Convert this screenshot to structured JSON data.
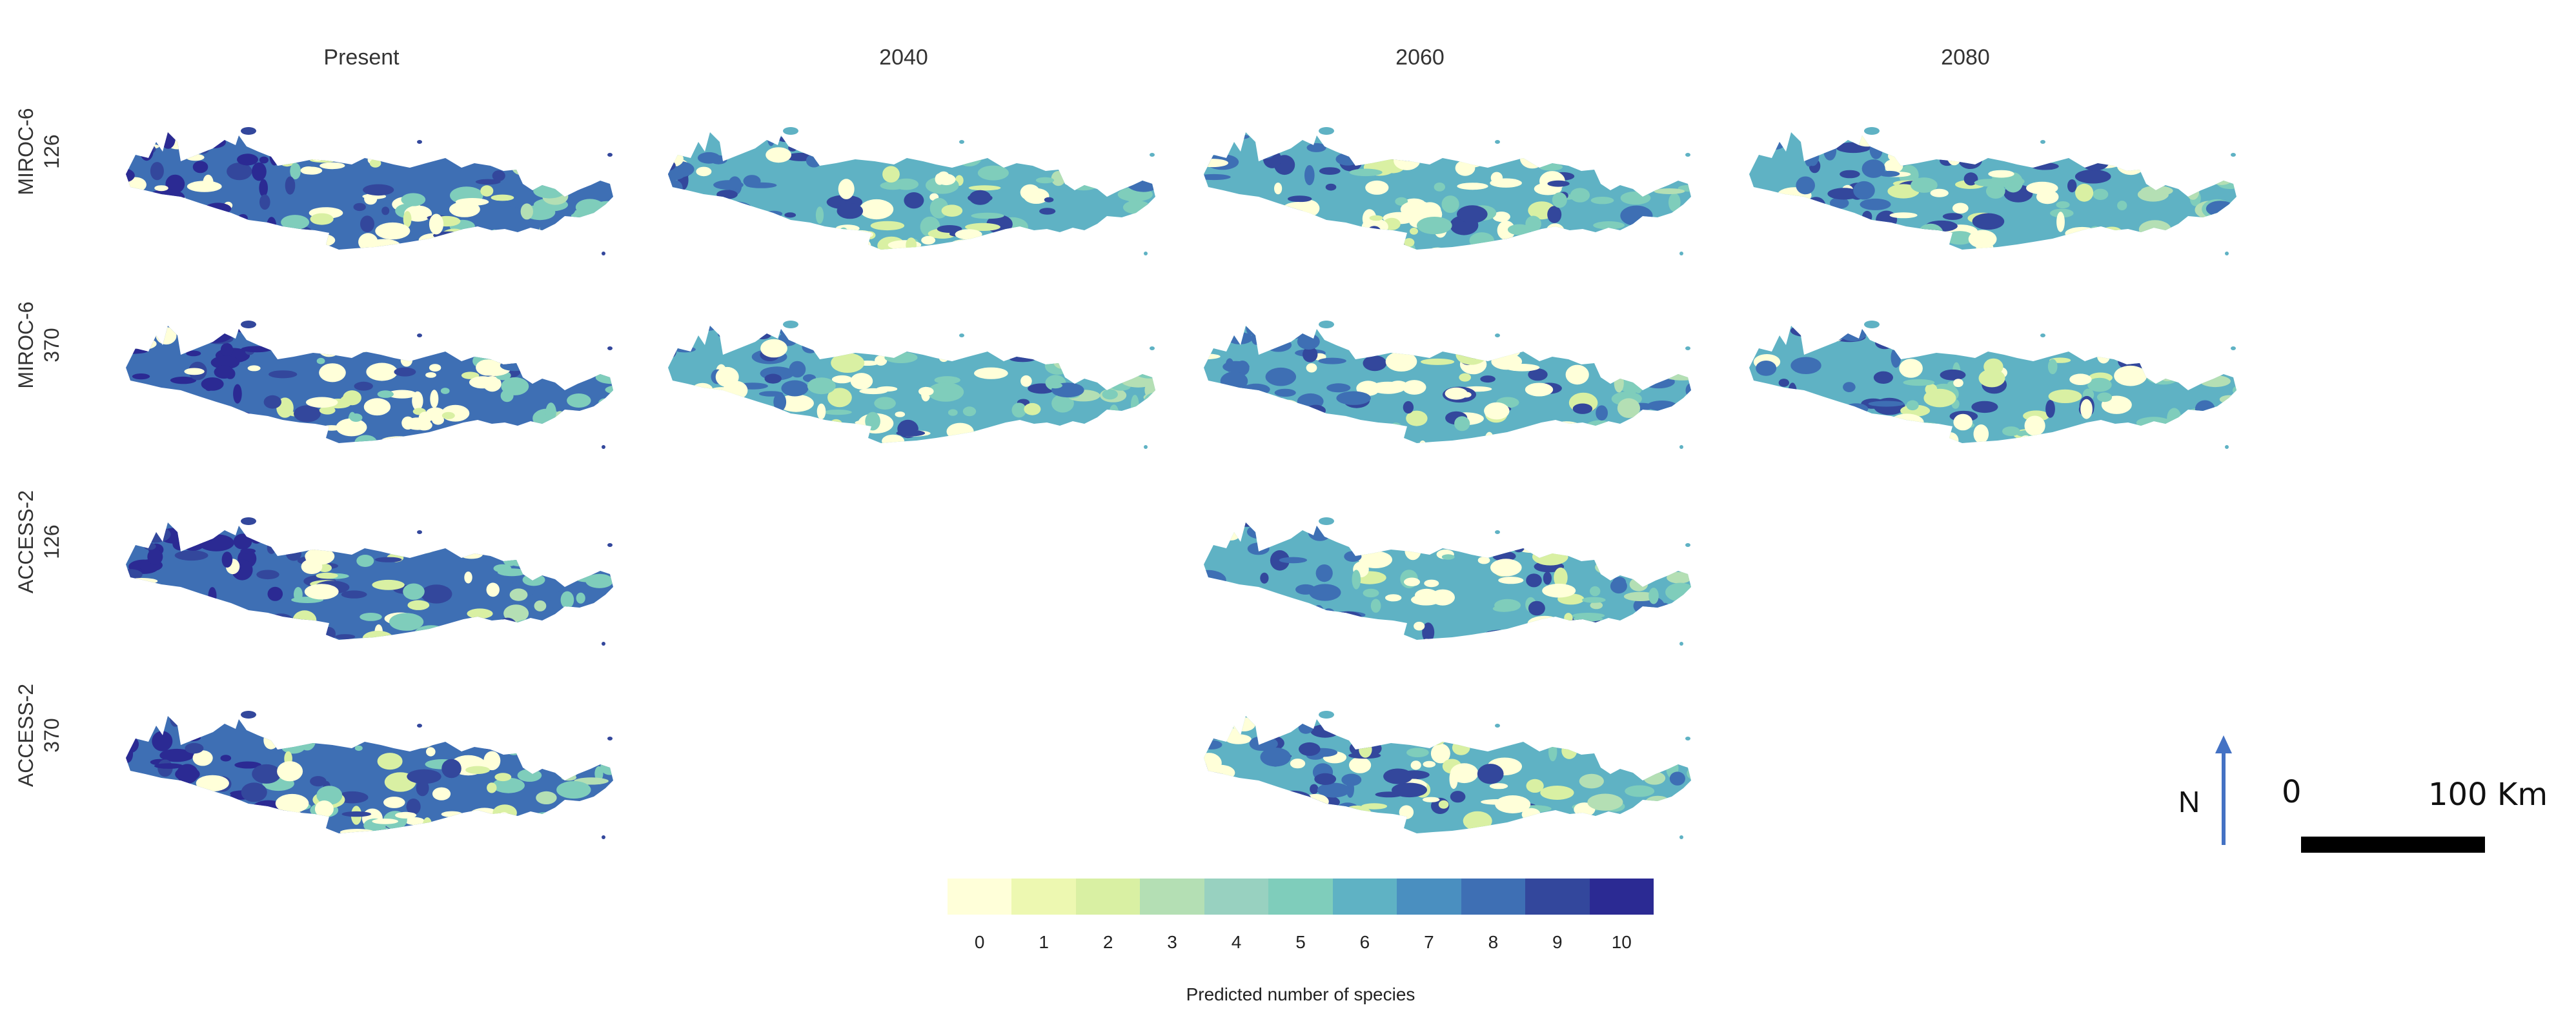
{
  "columns": [
    "Present",
    "2040",
    "2060",
    "2080"
  ],
  "rows": [
    {
      "line1": "MIROC-6",
      "line2": "126"
    },
    {
      "line1": "MIROC-6",
      "line2": "370"
    },
    {
      "line1": "ACCESS-2",
      "line2": "126"
    },
    {
      "line1": "ACCESS-2",
      "line2": "370"
    }
  ],
  "panels": [
    {
      "row": 0,
      "col": 0
    },
    {
      "row": 0,
      "col": 1
    },
    {
      "row": 0,
      "col": 2
    },
    {
      "row": 0,
      "col": 3
    },
    {
      "row": 1,
      "col": 0
    },
    {
      "row": 1,
      "col": 1
    },
    {
      "row": 1,
      "col": 2
    },
    {
      "row": 1,
      "col": 3
    },
    {
      "row": 2,
      "col": 0
    },
    {
      "row": 2,
      "col": 2
    },
    {
      "row": 3,
      "col": 0
    },
    {
      "row": 3,
      "col": 2
    }
  ],
  "legend": {
    "title": "Predicted number of species",
    "ticks": [
      "0",
      "1",
      "2",
      "3",
      "4",
      "5",
      "6",
      "7",
      "8",
      "9",
      "10"
    ],
    "colors": [
      "#ffffd9",
      "#edf8b1",
      "#d9f0a3",
      "#b4dfb4",
      "#98d1c0",
      "#7fcdbb",
      "#5fb2c4",
      "#4a8fc0",
      "#3e6fb4",
      "#33479c",
      "#2b2a93"
    ]
  },
  "north": {
    "label": "N",
    "arrow_color": "#4472c4"
  },
  "scale": {
    "zero": "0",
    "end": "100 Km"
  }
}
